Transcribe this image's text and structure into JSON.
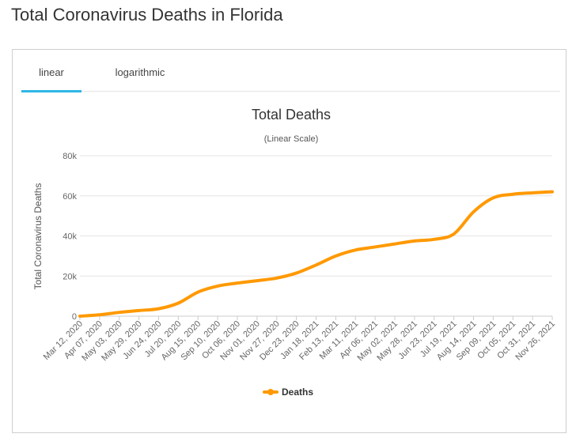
{
  "page": {
    "title": "Total Coronavirus Deaths in Florida"
  },
  "tabs": [
    {
      "label": "linear",
      "active": true
    },
    {
      "label": "logarithmic",
      "active": false
    }
  ],
  "colors": {
    "accent": "#2eb7e6",
    "series": "#ff9900",
    "grid": "#e6e6e6",
    "axis": "#666666"
  },
  "chart_data": {
    "type": "line",
    "title": "Total Deaths",
    "subtitle": "(Linear Scale)",
    "ylabel": "Total Coronavirus Deaths",
    "xlabel": "",
    "ylim": [
      0,
      80000
    ],
    "yticks": [
      0,
      20000,
      40000,
      60000,
      80000
    ],
    "ytick_labels": [
      "0",
      "20k",
      "40k",
      "60k",
      "80k"
    ],
    "grid": true,
    "legend": "bottom-center",
    "categories": [
      "Mar 12, 2020",
      "Apr 07, 2020",
      "May 03, 2020",
      "May 29, 2020",
      "Jun 24, 2020",
      "Jul 20, 2020",
      "Aug 15, 2020",
      "Sep 10, 2020",
      "Oct 06, 2020",
      "Nov 01, 2020",
      "Nov 27, 2020",
      "Dec 23, 2020",
      "Jan 18, 2021",
      "Feb 13, 2021",
      "Mar 11, 2021",
      "Apr 06, 2021",
      "May 02, 2021",
      "May 28, 2021",
      "Jun 23, 2021",
      "Jul 19, 2021",
      "Aug 14, 2021",
      "Sep 09, 2021",
      "Oct 05, 2021",
      "Oct 31, 2021",
      "Nov 26, 2021"
    ],
    "series": [
      {
        "name": "Deaths",
        "color": "#ff9900",
        "values": [
          0,
          700,
          1900,
          2800,
          3700,
          6500,
          12000,
          15000,
          16500,
          17700,
          19000,
          21500,
          25500,
          30000,
          33000,
          34500,
          36000,
          37500,
          38300,
          41000,
          52000,
          59000,
          60800,
          61500,
          62000
        ]
      }
    ]
  }
}
